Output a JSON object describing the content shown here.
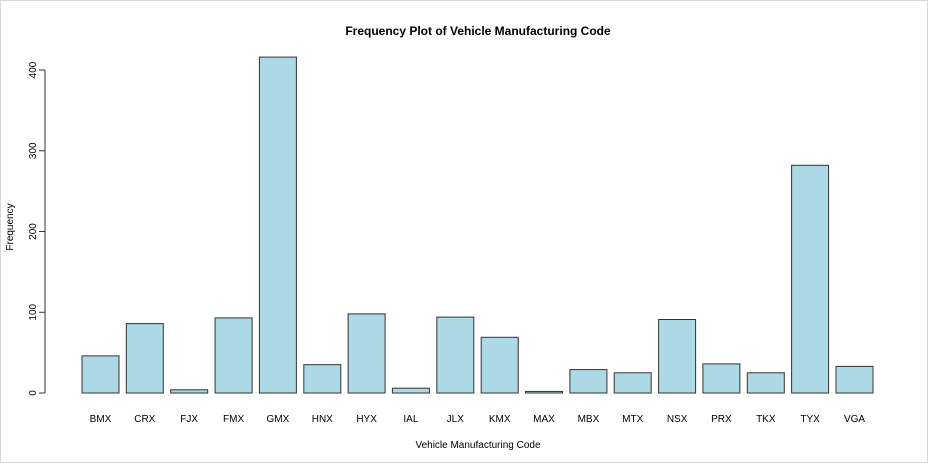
{
  "chart_data": {
    "type": "bar",
    "title": "Frequency Plot of Vehicle Manufacturing Code",
    "xlabel": "Vehicle Manufacturing Code",
    "ylabel": "Frequency",
    "categories": [
      "BMX",
      "CRX",
      "FJX",
      "FMX",
      "GMX",
      "HNX",
      "HYX",
      "IAL",
      "JLX",
      "KMX",
      "MAX",
      "MBX",
      "MTX",
      "NSX",
      "PRX",
      "TKX",
      "TYX",
      "VGA"
    ],
    "values": [
      46,
      86,
      4,
      93,
      416,
      35,
      98,
      6,
      94,
      69,
      2,
      29,
      25,
      91,
      36,
      25,
      282,
      33
    ],
    "yticks": [
      0,
      100,
      200,
      300,
      400
    ],
    "ylim": [
      0,
      416
    ],
    "bar_color": "#add8e6",
    "bar_border_color": "#333333",
    "grid": false,
    "legend": "none"
  }
}
